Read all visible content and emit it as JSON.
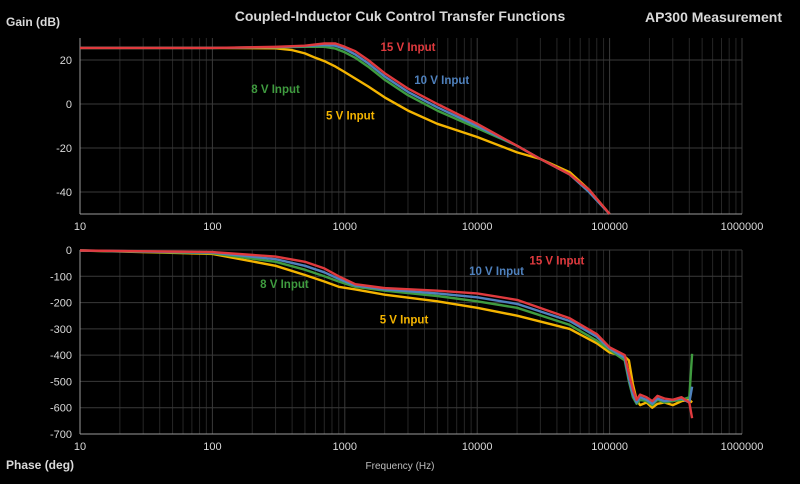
{
  "header": {
    "title": "Coupled-Inductor Cuk Control Transfer Functions",
    "right_label": "AP300 Measurement",
    "gain_axis_label": "Gain (dB)",
    "phase_axis_label": "Phase (deg)",
    "x_axis_label": "Frequency (Hz)"
  },
  "colors": {
    "background": "#000000",
    "grid": "#3a3a3a",
    "axis_text": "#d9d9d9",
    "15V": "#e03a3e",
    "10V": "#4f81bd",
    "8V": "#3f9b3f",
    "5V": "#f4b400"
  },
  "chart_data": [
    {
      "type": "line",
      "title": "Coupled-Inductor Cuk Control Transfer Functions",
      "xlabel": "",
      "ylabel": "Gain (dB)",
      "x_scale": "log",
      "xlim": [
        10,
        1000000
      ],
      "ylim": [
        -50,
        30
      ],
      "x_ticks": [
        "10",
        "100",
        "1000",
        "10000",
        "100000",
        "1000000"
      ],
      "y_ticks": [
        "20",
        "0",
        "-20",
        "-40"
      ],
      "grid": true,
      "series": [
        {
          "name": "15 V Input",
          "color": "#e03a3e",
          "x": [
            10,
            100,
            300,
            500,
            700,
            850,
            1000,
            1200,
            1500,
            2000,
            3000,
            5000,
            10000,
            20000,
            30000,
            50000,
            70000,
            100000
          ],
          "y": [
            25.5,
            25.5,
            26,
            26.5,
            27.5,
            27.5,
            26,
            24,
            20,
            14,
            7,
            0,
            -9,
            -19,
            -25,
            -32,
            -39,
            -50
          ]
        },
        {
          "name": "10 V Input",
          "color": "#4f81bd",
          "x": [
            10,
            100,
            300,
            500,
            700,
            850,
            1000,
            1200,
            1500,
            2000,
            3000,
            5000,
            10000,
            20000,
            30000,
            50000,
            70000,
            100000
          ],
          "y": [
            25.5,
            25.5,
            25.8,
            26.3,
            26.8,
            26.5,
            25,
            22.5,
            18.5,
            12.5,
            5.5,
            -1.5,
            -10,
            -19,
            -25,
            -32,
            -40,
            -50
          ]
        },
        {
          "name": "8 V Input",
          "color": "#3f9b3f",
          "x": [
            10,
            100,
            300,
            500,
            700,
            850,
            1000,
            1200,
            1500,
            2000,
            3000,
            5000,
            10000,
            20000,
            30000,
            50000,
            70000,
            100000
          ],
          "y": [
            25.5,
            25.5,
            25.8,
            26,
            26,
            25.2,
            23.5,
            21,
            17,
            11,
            4,
            -3,
            -11,
            -19,
            -25,
            -32,
            -40,
            -50
          ]
        },
        {
          "name": "5 V Input",
          "color": "#f4b400",
          "x": [
            10,
            100,
            300,
            400,
            500,
            600,
            700,
            850,
            1000,
            1500,
            2000,
            3000,
            5000,
            10000,
            20000,
            30000,
            50000,
            70000,
            100000
          ],
          "y": [
            25.5,
            25.5,
            25.3,
            24.5,
            23,
            21,
            19.5,
            17,
            14.5,
            8,
            3,
            -3,
            -9,
            -15,
            -22,
            -25,
            -31,
            -39,
            -50
          ]
        }
      ],
      "annotations": [
        {
          "text": "15 V Input",
          "color": "#e03a3e",
          "x": 3000,
          "y": 24
        },
        {
          "text": "10 V Input",
          "color": "#4f81bd",
          "x": 5400,
          "y": 9
        },
        {
          "text": "8 V Input",
          "color": "#3f9b3f",
          "x": 300,
          "y": 5
        },
        {
          "text": "5 V Input",
          "color": "#f4b400",
          "x": 1100,
          "y": -7
        }
      ]
    },
    {
      "type": "line",
      "title": "",
      "xlabel": "Frequency (Hz)",
      "ylabel": "Phase (deg)",
      "x_scale": "log",
      "xlim": [
        10,
        1000000
      ],
      "ylim": [
        -700,
        0
      ],
      "x_ticks": [
        "10",
        "100",
        "1000",
        "10000",
        "100000",
        "1000000"
      ],
      "y_ticks": [
        "0",
        "-100",
        "-200",
        "-300",
        "-400",
        "-500",
        "-600",
        "-700"
      ],
      "grid": true,
      "series": [
        {
          "name": "15 V Input",
          "color": "#e03a3e",
          "x": [
            10,
            100,
            300,
            500,
            700,
            900,
            1200,
            2000,
            5000,
            10000,
            20000,
            50000,
            80000,
            100000,
            130000,
            140000,
            150000,
            160000,
            170000,
            190000,
            210000,
            230000,
            260000,
            300000,
            350000,
            400000,
            420000
          ],
          "y": [
            -2,
            -8,
            -25,
            -45,
            -70,
            -100,
            -130,
            -145,
            -155,
            -165,
            -190,
            -260,
            -320,
            -370,
            -400,
            -470,
            -530,
            -570,
            -550,
            -560,
            -575,
            -555,
            -565,
            -570,
            -560,
            -580,
            -640
          ]
        },
        {
          "name": "10 V Input",
          "color": "#4f81bd",
          "x": [
            10,
            100,
            300,
            500,
            700,
            900,
            1200,
            2000,
            5000,
            10000,
            20000,
            50000,
            80000,
            100000,
            130000,
            140000,
            150000,
            160000,
            170000,
            190000,
            210000,
            230000,
            260000,
            300000,
            350000,
            400000,
            420000
          ],
          "y": [
            -2,
            -10,
            -35,
            -60,
            -85,
            -110,
            -135,
            -150,
            -165,
            -180,
            -205,
            -270,
            -330,
            -375,
            -410,
            -490,
            -550,
            -580,
            -560,
            -570,
            -585,
            -565,
            -575,
            -570,
            -565,
            -580,
            -520
          ]
        },
        {
          "name": "8 V Input",
          "color": "#3f9b3f",
          "x": [
            10,
            100,
            300,
            500,
            700,
            900,
            1200,
            2000,
            5000,
            10000,
            20000,
            50000,
            80000,
            100000,
            130000,
            140000,
            150000,
            160000,
            170000,
            190000,
            210000,
            230000,
            260000,
            300000,
            350000,
            400000,
            420000
          ],
          "y": [
            -2,
            -12,
            -45,
            -75,
            -100,
            -120,
            -140,
            -155,
            -175,
            -195,
            -220,
            -285,
            -345,
            -380,
            -420,
            -500,
            -560,
            -585,
            -570,
            -575,
            -590,
            -570,
            -580,
            -575,
            -570,
            -560,
            -395
          ]
        },
        {
          "name": "5 V Input",
          "color": "#f4b400",
          "x": [
            10,
            100,
            300,
            500,
            700,
            900,
            1200,
            2000,
            5000,
            10000,
            20000,
            50000,
            80000,
            100000,
            130000,
            140000,
            150000,
            160000,
            170000,
            190000,
            210000,
            230000,
            260000,
            300000,
            350000,
            400000,
            420000
          ],
          "y": [
            -2,
            -15,
            -60,
            -95,
            -120,
            -140,
            -150,
            -170,
            -195,
            -220,
            -250,
            -300,
            -355,
            -390,
            -405,
            -420,
            -510,
            -570,
            -590,
            -580,
            -600,
            -585,
            -580,
            -590,
            -575,
            -570,
            -580
          ]
        }
      ],
      "annotations": [
        {
          "text": "15 V Input",
          "color": "#e03a3e",
          "x": 40000,
          "y": -55
        },
        {
          "text": "10 V Input",
          "color": "#4f81bd",
          "x": 14000,
          "y": -95
        },
        {
          "text": "8 V Input",
          "color": "#3f9b3f",
          "x": 350,
          "y": -145
        },
        {
          "text": "5 V Input",
          "color": "#f4b400",
          "x": 2800,
          "y": -280
        }
      ]
    }
  ]
}
